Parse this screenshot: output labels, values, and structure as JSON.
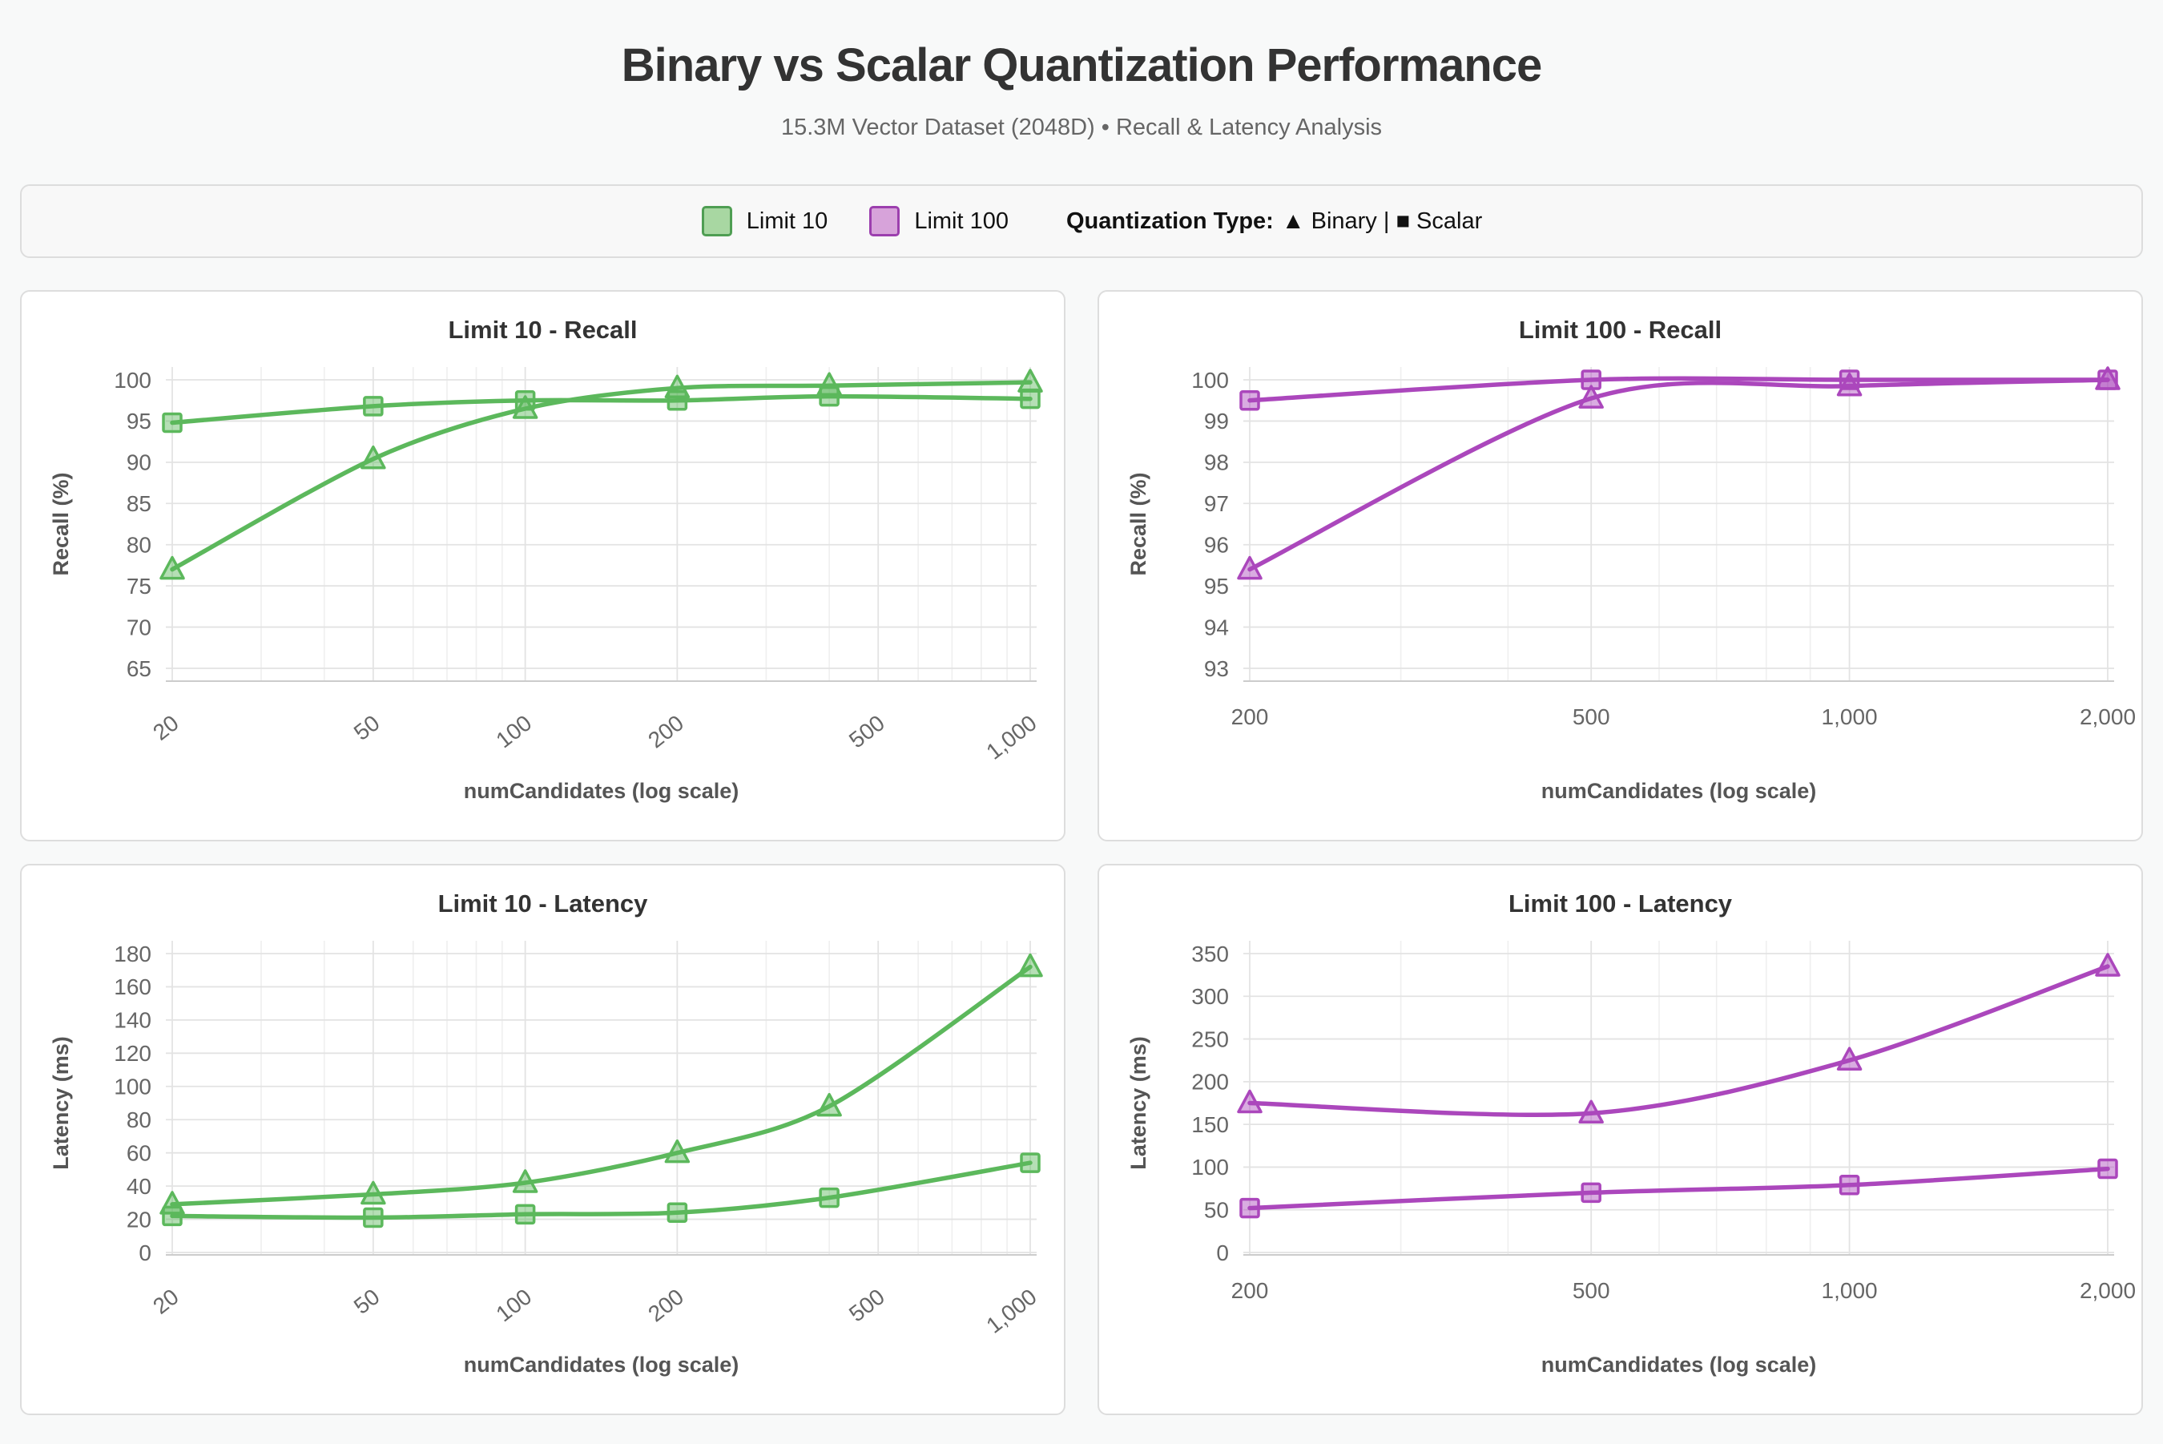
{
  "page": {
    "title": "Binary vs Scalar Quantization Performance",
    "subtitle": "15.3M Vector Dataset (2048D) • Recall & Latency Analysis"
  },
  "legend": {
    "items": [
      {
        "label": "Limit 10",
        "fill": "#a8d7a2",
        "border": "#4f9e53"
      },
      {
        "label": "Limit 100",
        "fill": "#d7a3da",
        "border": "#9c3fae"
      }
    ],
    "quant_label": "Quantization Type:",
    "quant_value": "▲ Binary | ■ Scalar"
  },
  "colors": {
    "grid_major": "#e3e3e3",
    "grid_minor": "#efefef",
    "axis_line": "#cccccc",
    "tick_text": "#666666",
    "axis_title": "#555555",
    "chart_title": "#333333"
  },
  "chart_data": [
    {
      "type": "line",
      "title": "Limit 10 - Recall",
      "xlabel": "numCandidates (log scale)",
      "ylabel": "Recall (%)",
      "xscale": "log",
      "x": [
        20,
        50,
        100,
        200,
        400,
        1000
      ],
      "xticks": [
        20,
        50,
        100,
        200,
        500,
        1000
      ],
      "xtick_labels": [
        "20",
        "50",
        "100",
        "200",
        "500",
        "1,000"
      ],
      "rotate_xticks": true,
      "ylim": [
        65,
        100
      ],
      "yticks": [
        65,
        70,
        75,
        80,
        85,
        90,
        95,
        100
      ],
      "color": "#5cb85c",
      "marker_fill": "rgba(92,184,92,0.45)",
      "series": [
        {
          "name": "Binary",
          "marker": "triangle",
          "values": [
            77,
            90.4,
            96.5,
            99,
            99.3,
            99.7
          ]
        },
        {
          "name": "Scalar",
          "marker": "square",
          "values": [
            94.8,
            96.8,
            97.5,
            97.5,
            98,
            97.7
          ]
        }
      ]
    },
    {
      "type": "line",
      "title": "Limit 100 - Recall",
      "xlabel": "numCandidates (log scale)",
      "ylabel": "Recall (%)",
      "xscale": "log",
      "x": [
        200,
        500,
        1000,
        2000
      ],
      "xticks": [
        200,
        500,
        1000,
        2000
      ],
      "xtick_labels": [
        "200",
        "500",
        "1,000",
        "2,000"
      ],
      "rotate_xticks": false,
      "ylim": [
        93,
        100
      ],
      "yticks": [
        93,
        94,
        95,
        96,
        97,
        98,
        99,
        100
      ],
      "color": "#ab47bc",
      "marker_fill": "rgba(171,71,188,0.45)",
      "series": [
        {
          "name": "Binary",
          "marker": "triangle",
          "values": [
            95.4,
            99.55,
            99.85,
            100
          ]
        },
        {
          "name": "Scalar",
          "marker": "square",
          "values": [
            99.5,
            100,
            100,
            100
          ]
        }
      ]
    },
    {
      "type": "line",
      "title": "Limit 10 - Latency",
      "xlabel": "numCandidates (log scale)",
      "ylabel": "Latency (ms)",
      "xscale": "log",
      "x": [
        20,
        50,
        100,
        200,
        400,
        1000
      ],
      "xticks": [
        20,
        50,
        100,
        200,
        500,
        1000
      ],
      "xtick_labels": [
        "20",
        "50",
        "100",
        "200",
        "500",
        "1,000"
      ],
      "rotate_xticks": true,
      "ylim": [
        0,
        180
      ],
      "yticks": [
        0,
        20,
        40,
        60,
        80,
        100,
        120,
        140,
        160,
        180
      ],
      "color": "#5cb85c",
      "marker_fill": "rgba(92,184,92,0.45)",
      "series": [
        {
          "name": "Binary",
          "marker": "triangle",
          "values": [
            29,
            35,
            42,
            60,
            88,
            172
          ]
        },
        {
          "name": "Scalar",
          "marker": "square",
          "values": [
            22,
            21,
            23,
            24,
            33,
            54
          ]
        }
      ]
    },
    {
      "type": "line",
      "title": "Limit 100 - Latency",
      "xlabel": "numCandidates (log scale)",
      "ylabel": "Latency (ms)",
      "xscale": "log",
      "x": [
        200,
        500,
        1000,
        2000
      ],
      "xticks": [
        200,
        500,
        1000,
        2000
      ],
      "xtick_labels": [
        "200",
        "500",
        "1,000",
        "2,000"
      ],
      "rotate_xticks": false,
      "ylim": [
        0,
        350
      ],
      "yticks": [
        0,
        50,
        100,
        150,
        200,
        250,
        300,
        350
      ],
      "color": "#ab47bc",
      "marker_fill": "rgba(171,71,188,0.45)",
      "series": [
        {
          "name": "Binary",
          "marker": "triangle",
          "values": [
            175,
            163,
            225,
            335
          ]
        },
        {
          "name": "Scalar",
          "marker": "square",
          "values": [
            52,
            70,
            79,
            98
          ]
        }
      ]
    }
  ]
}
